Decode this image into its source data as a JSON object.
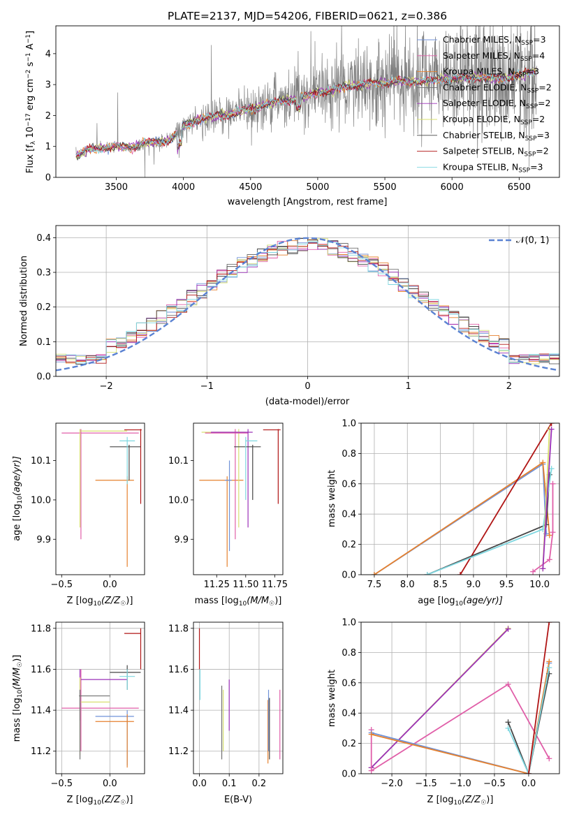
{
  "colors": {
    "chabrier_miles": "#6f92d8",
    "salpeter_miles": "#e05ea8",
    "kroupa_miles": "#e6812e",
    "chabrier_elodie": "#707070",
    "salpeter_elodie": "#9b30b8",
    "kroupa_elodie": "#d8e070",
    "chabrier_stelib": "#454545",
    "salpeter_stelib": "#b01515",
    "kroupa_stelib": "#7fd7e0",
    "gaussian": "#5a82d2"
  },
  "chart_data": [
    {
      "type": "line",
      "title": "PLATE=2137, MJD=54206, FIBERID=0621, z=0.386",
      "xlabel": "wavelength [Angstrom, rest frame]",
      "ylabel": "Flux [f_λ 10⁻¹⁷ erg cm⁻² s⁻¹ A⁻¹]",
      "ylabel_parts": {
        "a": "Flux [f",
        "b": "λ",
        "c": "10",
        "d": "−17",
        "e": " erg cm",
        "f": "−2",
        "g": " s",
        "h": "−1",
        "i": " A",
        "j": "−1",
        "k": "]"
      },
      "xlim": [
        3050,
        6800
      ],
      "ylim": [
        0,
        4.9
      ],
      "xticks": [
        "3500",
        "4000",
        "4500",
        "5000",
        "5500",
        "6000",
        "6500"
      ],
      "xtick_values": [
        3500,
        4000,
        4500,
        5000,
        5500,
        6000,
        6500
      ],
      "yticks": [
        "0",
        "1",
        "2",
        "3",
        "4"
      ],
      "ytick_values": [
        0,
        1,
        2,
        3,
        4
      ],
      "legend_position": "top-right",
      "legend": [
        {
          "name": "Chabrier MILES, N",
          "sub": "SSP",
          "count": "=3",
          "color": "#6f92d8"
        },
        {
          "name": "Salpeter MILES, N",
          "sub": "SSP",
          "count": "=4",
          "color": "#e05ea8"
        },
        {
          "name": "Kroupa MILES, N",
          "sub": "SSP",
          "count": "=3",
          "color": "#e6812e"
        },
        {
          "name": "Chabrier ELODIE, N",
          "sub": "SSP",
          "count": "=2",
          "color": "#707070"
        },
        {
          "name": "Salpeter ELODIE, N",
          "sub": "SSP",
          "count": "=2",
          "color": "#9b30b8"
        },
        {
          "name": "Kroupa ELODIE, N",
          "sub": "SSP",
          "count": "=2",
          "color": "#d8e070"
        },
        {
          "name": "Chabrier STELIB, N",
          "sub": "SSP",
          "count": "=3",
          "color": "#454545"
        },
        {
          "name": "Salpeter STELIB, N",
          "sub": "SSP",
          "count": "=2",
          "color": "#b01515"
        },
        {
          "name": "Kroupa STELIB, N",
          "sub": "SSP",
          "count": "=3",
          "color": "#7fd7e0"
        }
      ],
      "continuum": {
        "x": [
          3200,
          3300,
          3400,
          3500,
          3600,
          3700,
          3800,
          3900,
          4000,
          4100,
          4200,
          4300,
          4400,
          4500,
          4600,
          4700,
          4800,
          4900,
          5000,
          5100,
          5200,
          5300,
          5400,
          5500,
          5600,
          5700,
          5800,
          5900,
          6000,
          6100,
          6200,
          6300,
          6400,
          6500,
          6600
        ],
        "y": [
          0.7,
          0.9,
          0.95,
          1.0,
          0.95,
          1.1,
          1.15,
          1.2,
          1.65,
          1.85,
          1.95,
          2.0,
          2.1,
          2.2,
          2.35,
          2.45,
          2.5,
          2.6,
          2.75,
          2.8,
          2.95,
          2.95,
          3.05,
          3.05,
          3.1,
          3.1,
          3.1,
          3.15,
          3.2,
          3.2,
          3.25,
          3.2,
          3.2,
          3.3,
          3.4
        ]
      },
      "data_wavelength_range": [
        3200,
        6630
      ]
    },
    {
      "type": "line",
      "xlabel": "(data-model)/error",
      "ylabel": "Normed distribution",
      "xlim": [
        -2.5,
        2.5
      ],
      "ylim": [
        0,
        0.435
      ],
      "xticks": [
        "−2",
        "−1",
        "0",
        "1",
        "2"
      ],
      "xtick_values": [
        -2,
        -1,
        0,
        1,
        2
      ],
      "yticks": [
        "0.0",
        "0.1",
        "0.2",
        "0.3",
        "0.4"
      ],
      "ytick_values": [
        0,
        0.1,
        0.2,
        0.3,
        0.4
      ],
      "grid": true,
      "legend_position": "top-right",
      "legend_label": "𝒩(0, 1)",
      "bin_width": 0.1
    },
    {
      "type": "scatter",
      "xlabel": "Z [log₁₀(Z/Z☉)]",
      "ylabel": "age  [log₁₀(age/yr)]",
      "xlabel_parts": {
        "a": "Z [log",
        "b": "10",
        "c": "(Z/Z",
        "d": "☉",
        "e": ")]"
      },
      "ylabel_parts": {
        "a": "age  [log",
        "b": "10",
        "c": "(age/yr)]"
      },
      "xlim": [
        -0.56,
        0.36
      ],
      "ylim": [
        9.81,
        10.195
      ],
      "xticks": [
        "−0.5",
        "0.0"
      ],
      "xtick_values": [
        -0.5,
        0.0
      ],
      "yticks": [
        "9.9",
        "10.0",
        "10.1"
      ],
      "ytick_values": [
        9.9,
        10.0,
        10.1
      ],
      "crosses": [
        {
          "color": "#e05ea8",
          "x": [
            -0.5,
            0.3
          ],
          "y": [
            10.17,
            10.17
          ],
          "vx": -0.3,
          "vy": [
            9.9,
            10.18
          ]
        },
        {
          "color": "#d8e070",
          "x": [
            -0.3,
            0.18
          ],
          "y": [
            10.175,
            10.175
          ],
          "vx": -0.31,
          "vy": [
            9.93,
            10.18
          ]
        },
        {
          "color": "#e6812e",
          "x": [
            -0.15,
            0.25
          ],
          "y": [
            10.05,
            10.05
          ],
          "vx": 0.18,
          "vy": [
            9.83,
            10.06
          ]
        },
        {
          "color": "#b01515",
          "x": [
            0.15,
            0.33
          ],
          "y": [
            10.178,
            10.178
          ],
          "vx": 0.32,
          "vy": [
            9.99,
            10.18
          ]
        },
        {
          "color": "#454545",
          "x": [
            0.0,
            0.32
          ],
          "y": [
            10.135,
            10.135
          ],
          "vx": 0.2,
          "vy": [
            10.05,
            10.14
          ]
        },
        {
          "color": "#7fd7e0",
          "x": [
            0.1,
            0.26
          ],
          "y": [
            10.15,
            10.15
          ],
          "vx": 0.18,
          "vy": [
            10.04,
            10.16
          ]
        }
      ]
    },
    {
      "type": "scatter",
      "xlabel": "mass [log₁₀(M/M☉)]",
      "xlabel_parts": {
        "a": "mass [log",
        "b": "10",
        "c": "(M/M",
        "d": "☉",
        "e": ")]"
      },
      "xlim": [
        11.05,
        11.82
      ],
      "ylim": [
        9.81,
        10.195
      ],
      "xticks": [
        "11.25",
        "11.50",
        "11.75"
      ],
      "xtick_values": [
        11.25,
        11.5,
        11.75
      ],
      "yticks": [
        "9.9",
        "10.0",
        "10.1"
      ],
      "ytick_values": [
        9.9,
        10.0,
        10.1
      ],
      "crosses": [
        {
          "color": "#e6812e",
          "x": [
            11.1,
            11.48
          ],
          "y": [
            10.05,
            10.05
          ],
          "vx": 11.34,
          "vy": [
            9.83,
            10.06
          ]
        },
        {
          "color": "#d8e070",
          "x": [
            11.12,
            11.5
          ],
          "y": [
            10.172,
            10.172
          ],
          "vx": 11.44,
          "vy": [
            9.93,
            10.18
          ]
        },
        {
          "color": "#e05ea8",
          "x": [
            11.15,
            11.52
          ],
          "y": [
            10.17,
            10.17
          ],
          "vx": 11.41,
          "vy": [
            9.9,
            10.18
          ]
        },
        {
          "color": "#9b30b8",
          "x": [
            11.2,
            11.56
          ],
          "y": [
            10.172,
            10.172
          ],
          "vx": 11.52,
          "vy": [
            9.93,
            10.18
          ]
        },
        {
          "color": "#454545",
          "x": [
            11.4,
            11.63
          ],
          "y": [
            10.135,
            10.135
          ],
          "vx": 11.56,
          "vy": [
            10.0,
            10.14
          ]
        },
        {
          "color": "#7fd7e0",
          "x": [
            11.5,
            11.6
          ],
          "y": [
            10.15,
            10.15
          ],
          "vx": 11.5,
          "vy": [
            10.0,
            10.16
          ]
        },
        {
          "color": "#b01515",
          "x": [
            11.65,
            11.8
          ],
          "y": [
            10.178,
            10.178
          ],
          "vx": 11.78,
          "vy": [
            9.99,
            10.18
          ]
        },
        {
          "color": "#6f92d8",
          "x": [
            11.32,
            11.38
          ],
          "y": [
            10.05,
            10.05
          ],
          "vx": 11.36,
          "vy": [
            9.87,
            10.1
          ]
        }
      ]
    },
    {
      "type": "line",
      "xlabel": "age  [log₁₀(age/yr)]",
      "xlabel_parts": {
        "a": "age  [log",
        "b": "10",
        "c": "(age/yr)]"
      },
      "ylabel": "mass weight",
      "xlim": [
        7.3,
        10.3
      ],
      "ylim": [
        0,
        1.0
      ],
      "xticks": [
        "7.5",
        "8.0",
        "8.5",
        "9.0",
        "9.5",
        "10.0"
      ],
      "xtick_values": [
        7.5,
        8.0,
        8.5,
        9.0,
        9.5,
        10.0
      ],
      "yticks": [
        "0.0",
        "0.2",
        "0.4",
        "0.6",
        "0.8",
        "1.0"
      ],
      "ytick_values": [
        0,
        0.2,
        0.4,
        0.6,
        0.8,
        1.0
      ],
      "grid": true,
      "series": [
        {
          "color": "#6f92d8",
          "x": [
            7.5,
            10.05,
            10.1
          ],
          "y": [
            0.0,
            0.73,
            0.27
          ]
        },
        {
          "color": "#e6812e",
          "x": [
            7.5,
            10.05,
            10.15
          ],
          "y": [
            0.0,
            0.74,
            0.26
          ]
        },
        {
          "color": "#b01515",
          "x": [
            8.8,
            10.18
          ],
          "y": [
            0.0,
            1.0
          ]
        },
        {
          "color": "#454545",
          "x": [
            8.3,
            10.1,
            10.15
          ],
          "y": [
            0.0,
            0.33,
            0.66
          ]
        },
        {
          "color": "#7fd7e0",
          "x": [
            8.3,
            10.05,
            10.18
          ],
          "y": [
            0.0,
            0.3,
            0.7
          ]
        },
        {
          "color": "#e05ea8",
          "x": [
            9.9,
            10.15,
            10.2,
            10.2
          ],
          "y": [
            0.02,
            0.1,
            0.28,
            0.6
          ]
        },
        {
          "color": "#d8e070",
          "x": [
            10.05,
            10.15
          ],
          "y": [
            0.04,
            0.96
          ]
        },
        {
          "color": "#9b30b8",
          "x": [
            10.05,
            10.18
          ],
          "y": [
            0.04,
            0.96
          ]
        }
      ]
    },
    {
      "type": "scatter",
      "xlabel": "Z [log₁₀(Z/Z☉)]",
      "xlabel_parts": {
        "a": "Z [log",
        "b": "10",
        "c": "(Z/Z",
        "d": "☉",
        "e": ")]"
      },
      "ylabel": "mass [log₁₀(M/M☉)]",
      "ylabel_parts": {
        "a": "mass [log",
        "b": "10",
        "c": "(M/M",
        "d": "☉",
        "e": ")]"
      },
      "xlim": [
        -0.56,
        0.36
      ],
      "ylim": [
        11.09,
        11.83
      ],
      "xticks": [
        "−0.5",
        "0.0"
      ],
      "xtick_values": [
        -0.5,
        0.0
      ],
      "yticks": [
        "11.2",
        "11.4",
        "11.6",
        "11.8"
      ],
      "ytick_values": [
        11.2,
        11.4,
        11.6,
        11.8
      ],
      "grid": true,
      "crosses": [
        {
          "color": "#e05ea8",
          "x": [
            -0.5,
            0.3
          ],
          "y": [
            11.41,
            11.41
          ],
          "vx": -0.3,
          "vy": [
            11.2,
            11.6
          ]
        },
        {
          "color": "#9b30b8",
          "x": [
            -0.3,
            0.18
          ],
          "y": [
            11.55,
            11.55
          ],
          "vx": -0.31,
          "vy": [
            11.35,
            11.6
          ]
        },
        {
          "color": "#d8e070",
          "x": [
            -0.3,
            0.0
          ],
          "y": [
            11.44,
            11.44
          ],
          "vx": -0.31,
          "vy": [
            11.18,
            11.56
          ]
        },
        {
          "color": "#707070",
          "x": [
            -0.32,
            0.0
          ],
          "y": [
            11.47,
            11.47
          ],
          "vx": -0.31,
          "vy": [
            11.16,
            11.5
          ]
        },
        {
          "color": "#6f92d8",
          "x": [
            -0.15,
            0.25
          ],
          "y": [
            11.37,
            11.37
          ],
          "vx": 0.18,
          "vy": [
            11.13,
            11.4
          ]
        },
        {
          "color": "#e6812e",
          "x": [
            -0.15,
            0.25
          ],
          "y": [
            11.345,
            11.345
          ],
          "vx": 0.18,
          "vy": [
            11.12,
            11.38
          ]
        },
        {
          "color": "#454545",
          "x": [
            0.0,
            0.32
          ],
          "y": [
            11.585,
            11.585
          ],
          "vx": 0.18,
          "vy": [
            11.5,
            11.62
          ]
        },
        {
          "color": "#7fd7e0",
          "x": [
            0.1,
            0.26
          ],
          "y": [
            11.565,
            11.565
          ],
          "vx": 0.18,
          "vy": [
            11.5,
            11.6
          ]
        },
        {
          "color": "#b01515",
          "x": [
            0.15,
            0.32
          ],
          "y": [
            11.775,
            11.775
          ],
          "vx": 0.32,
          "vy": [
            11.6,
            11.8
          ]
        }
      ]
    },
    {
      "type": "scatter",
      "xlabel": "E(B-V)",
      "xlim": [
        -0.02,
        0.28
      ],
      "ylim": [
        11.09,
        11.83
      ],
      "xticks": [
        "0.0",
        "0.1",
        "0.2"
      ],
      "xtick_values": [
        0.0,
        0.1,
        0.2
      ],
      "yticks": [
        "11.2",
        "11.4",
        "11.6",
        "11.8"
      ],
      "ytick_values": [
        11.2,
        11.4,
        11.6,
        11.8
      ],
      "grid": true,
      "vlines": [
        {
          "color": "#b01515",
          "x": 0.0,
          "y": [
            11.6,
            11.8
          ]
        },
        {
          "color": "#7fd7e0",
          "x": 0.002,
          "y": [
            11.45,
            11.6
          ]
        },
        {
          "color": "#707070",
          "x": 0.075,
          "y": [
            11.16,
            11.52
          ]
        },
        {
          "color": "#d8e070",
          "x": 0.08,
          "y": [
            11.2,
            11.5
          ]
        },
        {
          "color": "#9b30b8",
          "x": 0.1,
          "y": [
            11.3,
            11.55
          ]
        },
        {
          "color": "#e6812e",
          "x": 0.23,
          "y": [
            11.14,
            11.45
          ]
        },
        {
          "color": "#6f92d8",
          "x": 0.232,
          "y": [
            11.2,
            11.5
          ]
        },
        {
          "color": "#454545",
          "x": 0.235,
          "y": [
            11.16,
            11.46
          ]
        },
        {
          "color": "#e05ea8",
          "x": 0.27,
          "y": [
            11.16,
            11.5
          ]
        }
      ]
    },
    {
      "type": "line",
      "xlabel": "Z [log₁₀(Z/Z☉)]",
      "xlabel_parts": {
        "a": "Z [log",
        "b": "10",
        "c": "(Z/Z",
        "d": "☉",
        "e": ")]"
      },
      "ylabel": "mass weight",
      "xlim": [
        -2.45,
        0.45
      ],
      "ylim": [
        0,
        1.0
      ],
      "xticks": [
        "−2.0",
        "−1.5",
        "−1.0",
        "−0.5",
        "0.0"
      ],
      "xtick_values": [
        -2.0,
        -1.5,
        -1.0,
        -0.5,
        0.0
      ],
      "yticks": [
        "0.0",
        "0.2",
        "0.4",
        "0.6",
        "0.8",
        "1.0"
      ],
      "ytick_values": [
        0,
        0.2,
        0.4,
        0.6,
        0.8,
        1.0
      ],
      "grid": true,
      "series": [
        {
          "color": "#d8e070",
          "x": [
            -2.3,
            -0.3
          ],
          "y": [
            0.04,
            0.96
          ]
        },
        {
          "color": "#9b30b8",
          "x": [
            -2.3,
            -0.3
          ],
          "y": [
            0.04,
            0.955
          ]
        },
        {
          "color": "#e05ea8",
          "x": [
            -2.3,
            -2.3,
            -0.3,
            0.3
          ],
          "y": [
            0.29,
            0.02,
            0.59,
            0.1
          ]
        },
        {
          "color": "#6f92d8",
          "x": [
            -2.3,
            0.0,
            0.3
          ],
          "y": [
            0.27,
            0.0,
            0.73
          ]
        },
        {
          "color": "#e6812e",
          "x": [
            -2.3,
            0.0,
            0.3
          ],
          "y": [
            0.26,
            0.0,
            0.74
          ]
        },
        {
          "color": "#454545",
          "x": [
            -0.3,
            0.0,
            0.3
          ],
          "y": [
            0.34,
            0.0,
            0.66
          ]
        },
        {
          "color": "#7fd7e0",
          "x": [
            -0.3,
            0.0,
            0.3
          ],
          "y": [
            0.3,
            0.0,
            0.7
          ]
        },
        {
          "color": "#b01515",
          "x": [
            0.0,
            0.3
          ],
          "y": [
            0.0,
            1.0
          ]
        }
      ]
    }
  ]
}
